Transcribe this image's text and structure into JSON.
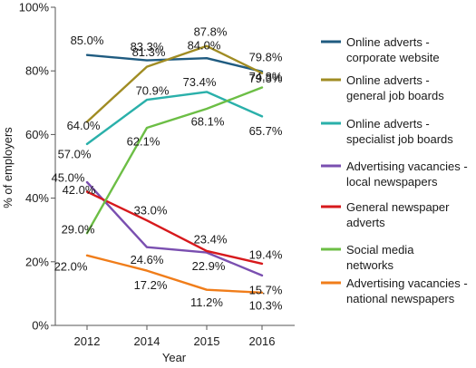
{
  "chart_data": {
    "type": "line",
    "xlabel": "Year",
    "ylabel": "% of employers",
    "ylim": [
      0,
      100
    ],
    "y_ticks": [
      "0%",
      "20%",
      "40%",
      "60%",
      "80%",
      "100%"
    ],
    "y_tick_values": [
      0,
      20,
      40,
      60,
      80,
      100
    ],
    "x": [
      "2012",
      "2014",
      "2015",
      "2016"
    ],
    "grid": false,
    "legend_position": "right",
    "series": [
      {
        "name": "Online adverts - corporate website",
        "name_lines": [
          "Online adverts -",
          "corporate website"
        ],
        "color": "#1f5b80",
        "values": [
          85.0,
          83.3,
          84.0,
          79.8
        ],
        "labels": [
          "85.0%",
          "83.3%",
          "84.0%",
          "79.8%"
        ]
      },
      {
        "name": "Online adverts - general job boards",
        "name_lines": [
          "Online adverts -",
          "general job boards"
        ],
        "color": "#a08c23",
        "values": [
          64.0,
          81.3,
          87.8,
          79.3
        ],
        "labels": [
          "64.0%",
          "81.3%",
          "87.8%",
          "79.3%"
        ]
      },
      {
        "name": "Online adverts - specialist job boards",
        "name_lines": [
          "Online adverts -",
          "specialist job boards"
        ],
        "color": "#2ab0aa",
        "values": [
          57.0,
          70.9,
          73.4,
          65.7
        ],
        "labels": [
          "57.0%",
          "70.9%",
          "73.4%",
          "65.7%"
        ]
      },
      {
        "name": "Advertising vacancies - local newspapers",
        "name_lines": [
          "Advertising vacancies -",
          "local newspapers"
        ],
        "color": "#7a4fb0",
        "values": [
          45.0,
          24.6,
          22.9,
          15.7
        ],
        "labels": [
          "45.0%",
          "24.6%",
          "22.9%",
          "15.7%"
        ]
      },
      {
        "name": "General newspaper adverts",
        "name_lines": [
          "General newspaper",
          "adverts"
        ],
        "color": "#d7191c",
        "values": [
          42.0,
          33.0,
          23.4,
          19.4
        ],
        "labels": [
          "42.0%",
          "33.0%",
          "23.4%",
          "19.4%"
        ]
      },
      {
        "name": "Social media networks",
        "name_lines": [
          "Social media",
          "networks"
        ],
        "color": "#6cbe45",
        "values": [
          29.0,
          62.1,
          68.1,
          74.8
        ],
        "labels": [
          "29.0%",
          "62.1%",
          "68.1%",
          "74.8%"
        ]
      },
      {
        "name": "Advertising vacancies - national newspapers",
        "name_lines": [
          "Advertising vacancies -",
          "national newspapers"
        ],
        "color": "#f07d1a",
        "values": [
          22.0,
          17.2,
          11.2,
          10.3
        ],
        "labels": [
          "22.0%",
          "17.2%",
          "11.2%",
          "10.3%"
        ]
      }
    ]
  }
}
